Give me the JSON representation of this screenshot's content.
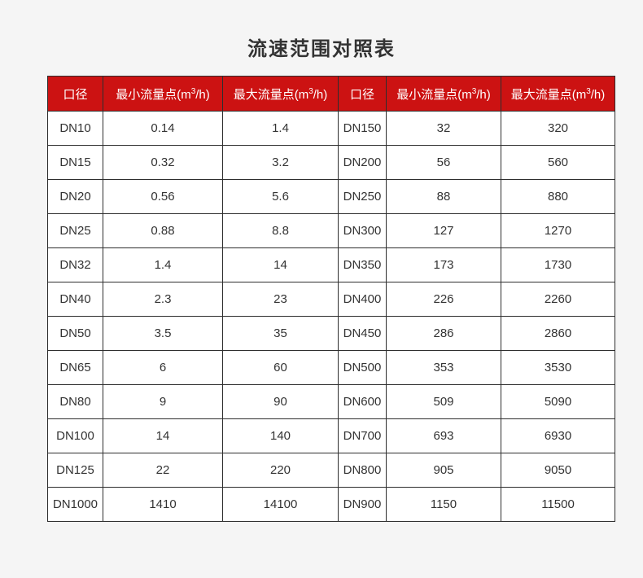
{
  "title": "流速范围对照表",
  "colors": {
    "page_bg": "#f5f5f5",
    "header_bg": "#cc1212",
    "header_text": "#ffffff",
    "border": "#2e2e2e",
    "cell_text": "#333333",
    "cell_bg": "#ffffff",
    "title_text": "#333333"
  },
  "table": {
    "headers": [
      "口径",
      "最小流量点(m³/h)",
      "最大流量点(m³/h)",
      "口径",
      "最小流量点(m³/h)",
      "最大流量点(m³/h)"
    ],
    "rows": [
      [
        "DN10",
        "0.14",
        "1.4",
        "DN150",
        "32",
        "320"
      ],
      [
        "DN15",
        "0.32",
        "3.2",
        "DN200",
        "56",
        "560"
      ],
      [
        "DN20",
        "0.56",
        "5.6",
        "DN250",
        "88",
        "880"
      ],
      [
        "DN25",
        "0.88",
        "8.8",
        "DN300",
        "127",
        "1270"
      ],
      [
        "DN32",
        "1.4",
        "14",
        "DN350",
        "173",
        "1730"
      ],
      [
        "DN40",
        "2.3",
        "23",
        "DN400",
        "226",
        "2260"
      ],
      [
        "DN50",
        "3.5",
        "35",
        "DN450",
        "286",
        "2860"
      ],
      [
        "DN65",
        "6",
        "60",
        "DN500",
        "353",
        "3530"
      ],
      [
        "DN80",
        "9",
        "90",
        "DN600",
        "509",
        "5090"
      ],
      [
        "DN100",
        "14",
        "140",
        "DN700",
        "693",
        "6930"
      ],
      [
        "DN125",
        "22",
        "220",
        "DN800",
        "905",
        "9050"
      ],
      [
        "DN1000",
        "1410",
        "14100",
        "DN900",
        "1150",
        "11500"
      ]
    ]
  }
}
